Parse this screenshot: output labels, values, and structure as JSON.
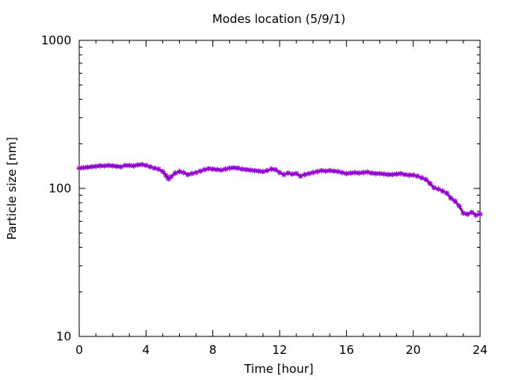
{
  "chart_data": {
    "type": "line",
    "title": "Modes location (5/9/1)",
    "xlabel": "Time [hour]",
    "ylabel": "Particle size [nm]",
    "xlim": [
      0,
      24
    ],
    "ylim": [
      10,
      1000
    ],
    "yscale": "log",
    "grid": false,
    "legend": "none",
    "x_ticks": [
      "0",
      "4",
      "8",
      "12",
      "16",
      "20",
      "24"
    ],
    "y_ticks": [
      "10",
      "100",
      "1000"
    ],
    "series": [
      {
        "color": "#9400d3",
        "marker": "star",
        "points": [
          [
            0.0,
            137
          ],
          [
            0.25,
            138
          ],
          [
            0.5,
            139
          ],
          [
            0.75,
            140
          ],
          [
            1.0,
            141
          ],
          [
            1.25,
            142
          ],
          [
            1.5,
            142
          ],
          [
            1.75,
            143
          ],
          [
            2.0,
            142
          ],
          [
            2.25,
            141
          ],
          [
            2.5,
            140
          ],
          [
            2.75,
            143
          ],
          [
            3.0,
            143
          ],
          [
            3.25,
            142
          ],
          [
            3.5,
            144
          ],
          [
            3.75,
            145
          ],
          [
            4.0,
            143
          ],
          [
            4.25,
            140
          ],
          [
            4.5,
            137
          ],
          [
            4.75,
            135
          ],
          [
            5.0,
            130
          ],
          [
            5.2,
            122
          ],
          [
            5.35,
            116
          ],
          [
            5.5,
            120
          ],
          [
            5.75,
            127
          ],
          [
            6.0,
            130
          ],
          [
            6.25,
            128
          ],
          [
            6.5,
            124
          ],
          [
            6.75,
            126
          ],
          [
            7.0,
            128
          ],
          [
            7.25,
            131
          ],
          [
            7.5,
            134
          ],
          [
            7.75,
            136
          ],
          [
            8.0,
            135
          ],
          [
            8.25,
            134
          ],
          [
            8.5,
            133
          ],
          [
            8.75,
            135
          ],
          [
            9.0,
            137
          ],
          [
            9.25,
            138
          ],
          [
            9.5,
            137
          ],
          [
            9.75,
            135
          ],
          [
            10.0,
            134
          ],
          [
            10.25,
            133
          ],
          [
            10.5,
            132
          ],
          [
            10.75,
            131
          ],
          [
            11.0,
            130
          ],
          [
            11.25,
            132
          ],
          [
            11.5,
            135
          ],
          [
            11.75,
            134
          ],
          [
            12.0,
            128
          ],
          [
            12.25,
            124
          ],
          [
            12.5,
            127
          ],
          [
            12.75,
            125
          ],
          [
            13.0,
            126
          ],
          [
            13.25,
            121
          ],
          [
            13.5,
            124
          ],
          [
            13.75,
            126
          ],
          [
            14.0,
            128
          ],
          [
            14.25,
            130
          ],
          [
            14.5,
            132
          ],
          [
            14.75,
            131
          ],
          [
            15.0,
            132
          ],
          [
            15.25,
            131
          ],
          [
            15.5,
            130
          ],
          [
            15.75,
            128
          ],
          [
            16.0,
            126
          ],
          [
            16.25,
            127
          ],
          [
            16.5,
            128
          ],
          [
            16.75,
            127
          ],
          [
            17.0,
            128
          ],
          [
            17.25,
            129
          ],
          [
            17.5,
            127
          ],
          [
            17.75,
            126
          ],
          [
            18.0,
            126
          ],
          [
            18.25,
            125
          ],
          [
            18.5,
            124
          ],
          [
            18.75,
            124
          ],
          [
            19.0,
            125
          ],
          [
            19.25,
            126
          ],
          [
            19.5,
            124
          ],
          [
            19.75,
            123
          ],
          [
            20.0,
            123
          ],
          [
            20.25,
            121
          ],
          [
            20.5,
            118
          ],
          [
            20.75,
            115
          ],
          [
            21.0,
            108
          ],
          [
            21.25,
            101
          ],
          [
            21.5,
            99
          ],
          [
            21.75,
            96
          ],
          [
            22.0,
            93
          ],
          [
            22.25,
            86
          ],
          [
            22.5,
            82
          ],
          [
            22.75,
            76
          ],
          [
            23.0,
            68
          ],
          [
            23.25,
            67
          ],
          [
            23.5,
            69
          ],
          [
            23.75,
            66
          ],
          [
            24.0,
            67
          ]
        ]
      }
    ]
  }
}
